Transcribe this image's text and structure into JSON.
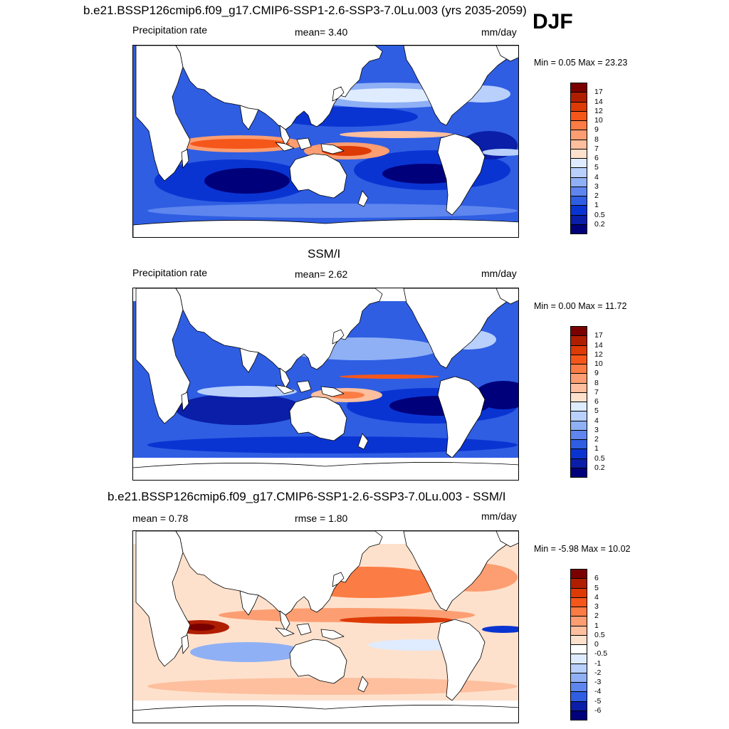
{
  "season": "DJF",
  "colors": {
    "ocean_dry": "#00007a",
    "land": "#ffffff",
    "coast": "#000000"
  },
  "panels": [
    {
      "title": "b.e21.BSSP126cmip6.f09_g17.CMIP6-SSP1-2.6-SSP3-7.0Lu.003 (yrs 2035-2059)",
      "left_label": "Precipitation rate",
      "center_label": "mean=   3.40",
      "units": "mm/day",
      "minmax": "Min =   0.05 Max =  23.23",
      "colorbar": {
        "labels": [
          "17",
          "14",
          "12",
          "10",
          "9",
          "8",
          "7",
          "6",
          "5",
          "4",
          "3",
          "2",
          "1",
          "0.5",
          "0.2"
        ],
        "colors": [
          "#7a0000",
          "#b01e00",
          "#dd3a06",
          "#f5571a",
          "#fb7c44",
          "#fc9e72",
          "#fdbf9e",
          "#fee1cc",
          "#dfecff",
          "#b8d0fb",
          "#8fb0f5",
          "#5e86ee",
          "#2f5ee3",
          "#0a34d2",
          "#0a1ea8",
          "#00007a"
        ]
      }
    },
    {
      "title": "SSM/I",
      "left_label": "Precipitation rate",
      "center_label": "mean=   2.62",
      "units": "mm/day",
      "minmax": "Min =   0.00 Max =  11.72",
      "colorbar": {
        "labels": [
          "17",
          "14",
          "12",
          "10",
          "9",
          "8",
          "7",
          "6",
          "5",
          "4",
          "3",
          "2",
          "1",
          "0.5",
          "0.2"
        ],
        "colors": [
          "#7a0000",
          "#b01e00",
          "#dd3a06",
          "#f5571a",
          "#fb7c44",
          "#fc9e72",
          "#fdbf9e",
          "#fee1cc",
          "#dfecff",
          "#b8d0fb",
          "#8fb0f5",
          "#5e86ee",
          "#2f5ee3",
          "#0a34d2",
          "#0a1ea8",
          "#00007a"
        ]
      }
    },
    {
      "title": "b.e21.BSSP126cmip6.f09_g17.CMIP6-SSP1-2.6-SSP3-7.0Lu.003 - SSM/I",
      "left_label": "mean =   0.78",
      "center_label": "rmse =   1.80",
      "units": "mm/day",
      "minmax": "Min =  -5.98 Max =  10.02",
      "colorbar": {
        "labels": [
          "6",
          "5",
          "4",
          "3",
          "2",
          "1",
          "0.5",
          "0",
          "-0.5",
          "-1",
          "-2",
          "-3",
          "-4",
          "-5",
          "-6"
        ],
        "colors": [
          "#7a0000",
          "#b01e00",
          "#dd3a06",
          "#f5571a",
          "#fb7c44",
          "#fc9e72",
          "#fdbf9e",
          "#fee1cc",
          "#ffffff",
          "#dfecff",
          "#b8d0fb",
          "#8fb0f5",
          "#5e86ee",
          "#2f5ee3",
          "#0a1ea8",
          "#00007a"
        ]
      }
    }
  ]
}
